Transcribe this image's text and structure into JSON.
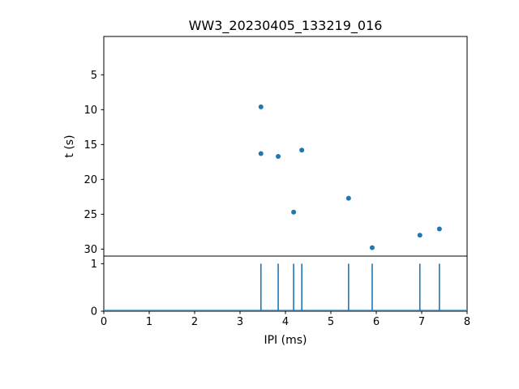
{
  "figure": {
    "title": "WW3_20230405_133219_016",
    "background": "#ffffff",
    "accent_color": "#1f77b4"
  },
  "chart_data": [
    {
      "type": "scatter",
      "title": "WW3_20230405_133219_016",
      "xlabel": "",
      "ylabel": "t (s)",
      "xlim": [
        0,
        8
      ],
      "ylim": [
        -0.5,
        31
      ],
      "y_inverted": true,
      "x_ticks": [
        0,
        1,
        2,
        3,
        4,
        5,
        6,
        7,
        8
      ],
      "x_tick_labels_visible": false,
      "y_ticks": [
        5,
        10,
        15,
        20,
        25,
        30
      ],
      "grid": false,
      "legend": "none",
      "marker": "circle",
      "color": "#1f77b4",
      "points": [
        {
          "x": 3.46,
          "t": 9.6
        },
        {
          "x": 3.46,
          "t": 16.3
        },
        {
          "x": 3.84,
          "t": 16.7
        },
        {
          "x": 4.18,
          "t": 24.7
        },
        {
          "x": 4.36,
          "t": 15.8
        },
        {
          "x": 5.39,
          "t": 22.7
        },
        {
          "x": 5.91,
          "t": 29.8
        },
        {
          "x": 6.96,
          "t": 28.0
        },
        {
          "x": 7.39,
          "t": 27.1
        }
      ]
    },
    {
      "type": "stem",
      "title": "",
      "xlabel": "IPI (ms)",
      "ylabel": "",
      "xlim": [
        0,
        8
      ],
      "ylim": [
        0,
        1.16
      ],
      "x_ticks": [
        0,
        1,
        2,
        3,
        4,
        5,
        6,
        7,
        8
      ],
      "y_ticks": [
        0,
        1
      ],
      "grid": false,
      "legend": "none",
      "color": "#1f77b4",
      "baseline": 0,
      "spike_height": 1,
      "spikes_x": [
        3.46,
        3.84,
        4.18,
        4.36,
        5.39,
        5.91,
        6.96,
        7.39
      ]
    }
  ]
}
